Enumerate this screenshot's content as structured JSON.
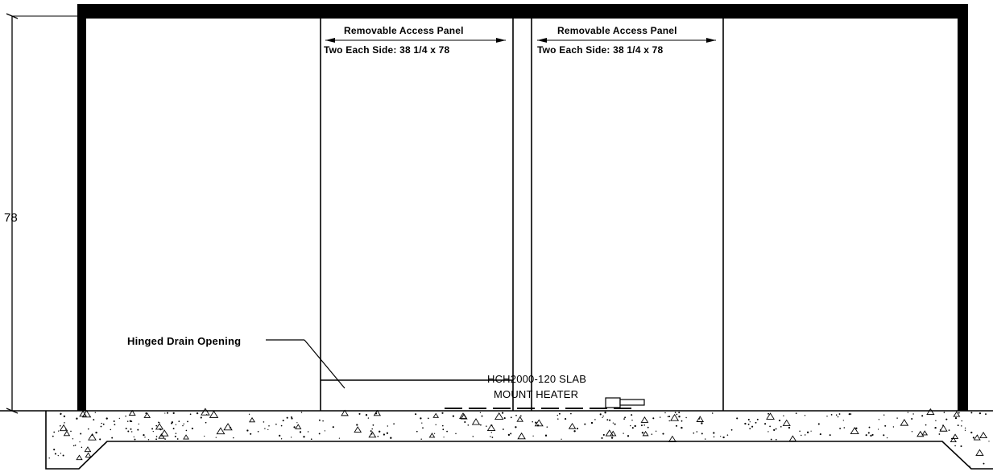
{
  "dimension": {
    "height_label": "78"
  },
  "access_panel_left": {
    "title": "Removable Access Panel",
    "subtitle": "Two Each Side:  38 1/4 x 78"
  },
  "access_panel_right": {
    "title": "Removable Access Panel",
    "subtitle": "Two Each Side:  38 1/4 x 78"
  },
  "drain_label": "Hinged Drain Opening",
  "heater_label": {
    "line1": "HCH2000-120 SLAB",
    "line2": "MOUNT HEATER"
  },
  "colors": {
    "line": "#000000",
    "background": "#ffffff"
  }
}
